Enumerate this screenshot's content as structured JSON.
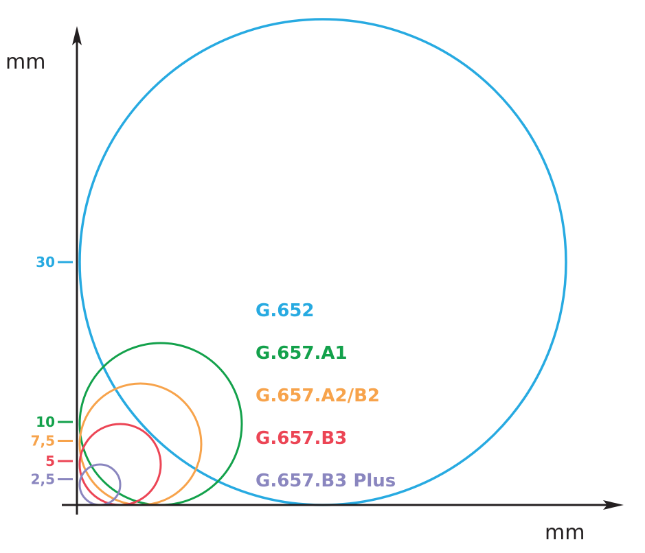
{
  "figure": {
    "axes": {
      "x_unit": "mm",
      "y_unit": "mm"
    },
    "series": [
      {
        "key": "g652",
        "name": "G.652",
        "radius": 30,
        "tick_label": "30",
        "color": "#27aae1"
      },
      {
        "key": "g657a1",
        "name": "G.657.A1",
        "radius": 10,
        "tick_label": "10",
        "color": "#13a14b"
      },
      {
        "key": "g657a2b2",
        "name": "G.657.A2/B2",
        "radius": 7.5,
        "tick_label": "7,5",
        "color": "#f7a34b"
      },
      {
        "key": "g657b3",
        "name": "G.657.B3",
        "radius": 5,
        "tick_label": "5",
        "color": "#ec4555"
      },
      {
        "key": "g657b3plus",
        "name": "G.657.B3 Plus",
        "radius": 2.5,
        "tick_label": "2,5",
        "color": "#8a86bf"
      }
    ]
  }
}
